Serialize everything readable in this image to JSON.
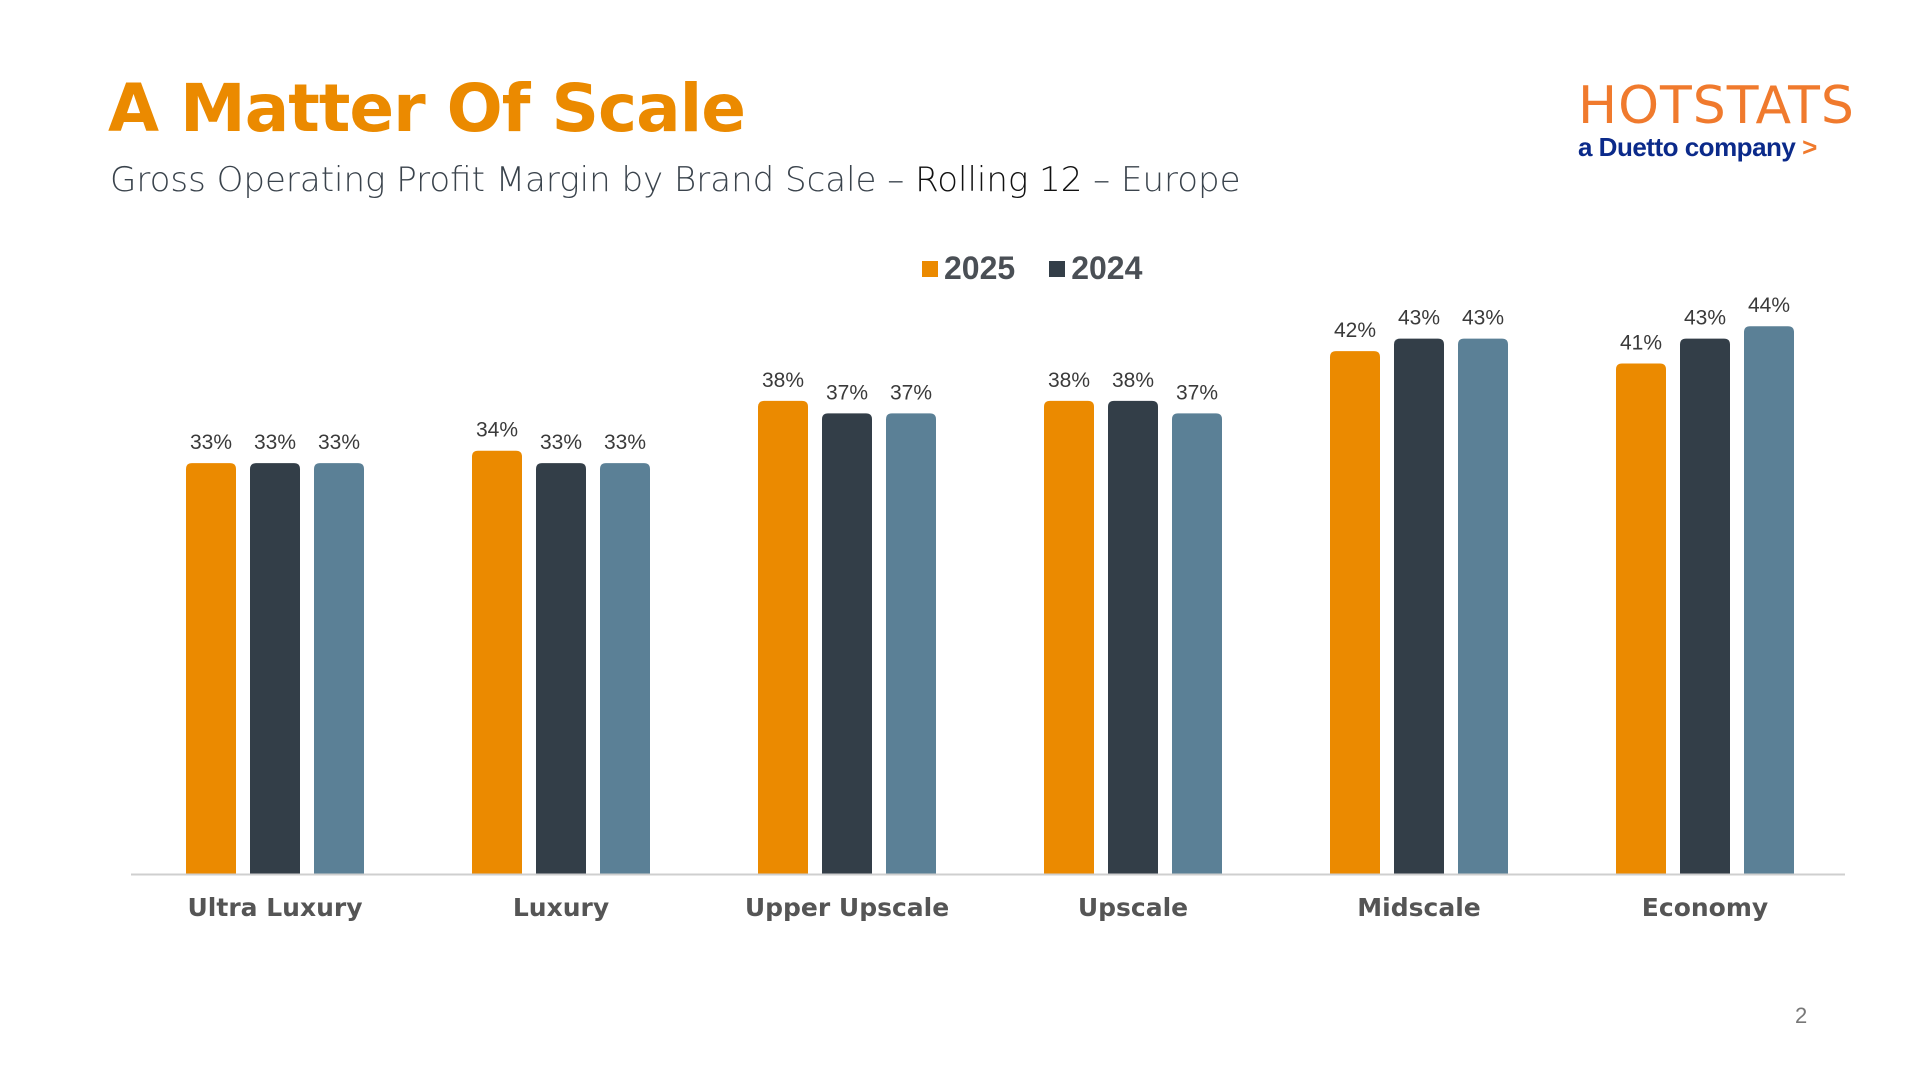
{
  "header": {
    "title": "A Matter Of Scale",
    "subtitle_part1": "Gross Operating Profit Margin by Brand Scale – ",
    "subtitle_part2": "Rolling 12",
    "subtitle_part3": " – Europe"
  },
  "logo": {
    "main": "HOTSTATS",
    "sub": "a Duetto company",
    "arrow": ">"
  },
  "page_number": "2",
  "chart_data": {
    "type": "bar",
    "categories": [
      "Ultra Luxury",
      "Luxury",
      "Upper Upscale",
      "Upscale",
      "Midscale",
      "Economy"
    ],
    "series": [
      {
        "name": "2025",
        "color": "#eb8a00",
        "values": [
          33,
          34,
          38,
          38,
          42,
          41
        ],
        "labels": [
          "33%",
          "34%",
          "38%",
          "38%",
          "42%",
          "41%"
        ]
      },
      {
        "name": "2024",
        "color": "#333e48",
        "values": [
          33,
          33,
          37,
          38,
          43,
          43
        ],
        "labels": [
          "33%",
          "33%",
          "37%",
          "38%",
          "43%",
          "43%"
        ]
      },
      {
        "color": "#5b8096",
        "values": [
          33,
          33,
          37,
          37,
          43,
          44
        ],
        "labels": [
          "33%",
          "33%",
          "37%",
          "37%",
          "43%",
          "44%"
        ]
      }
    ],
    "legend": [
      "2025",
      "2024"
    ],
    "legend_position": "top",
    "ylim": [
      0,
      46
    ],
    "grid": false
  }
}
